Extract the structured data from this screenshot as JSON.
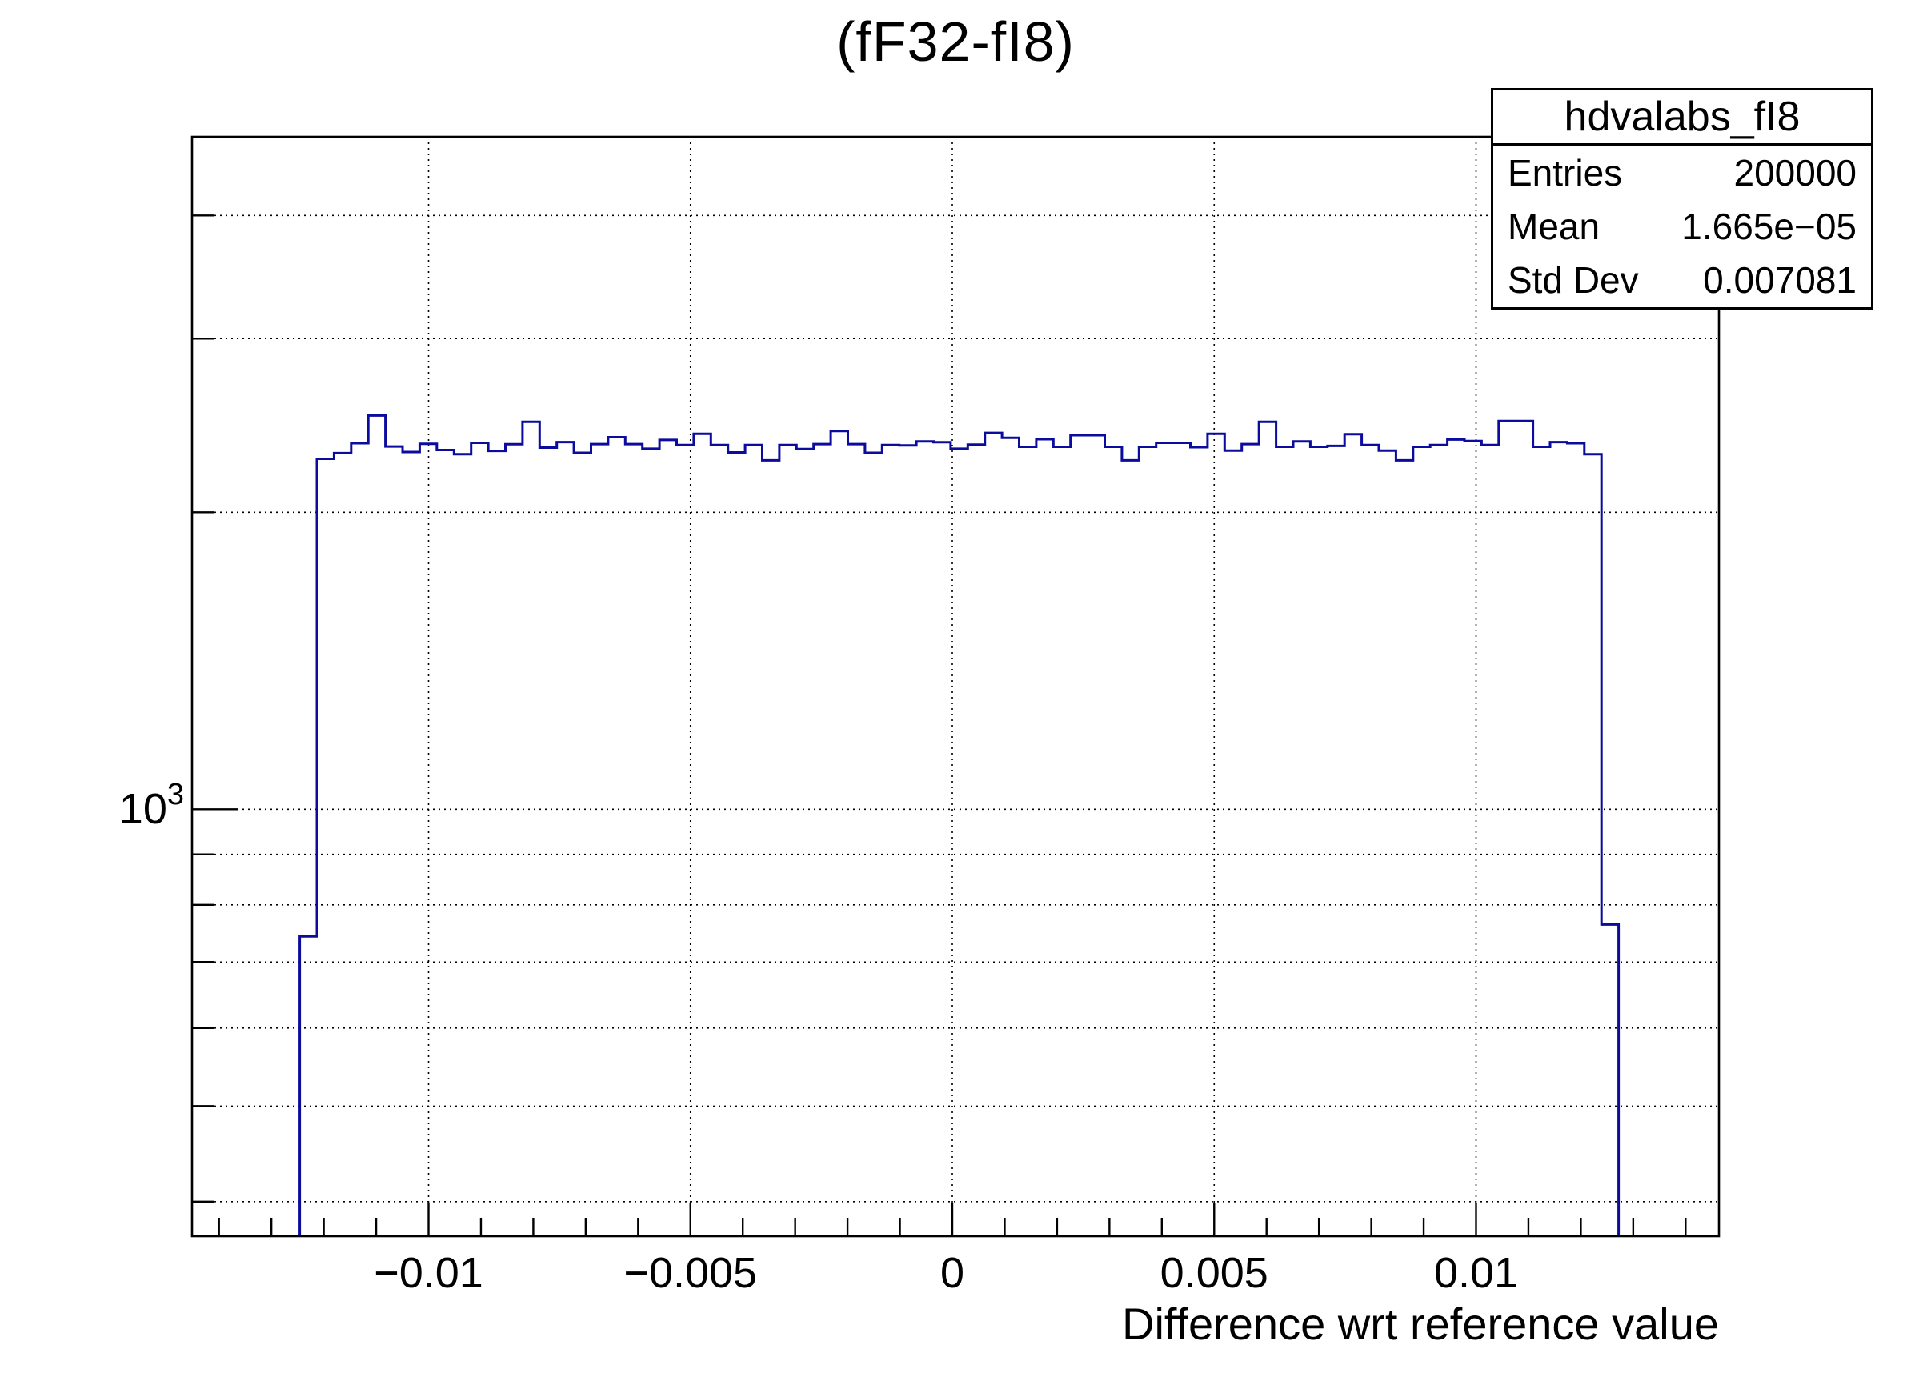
{
  "title": "(fF32-fI8)",
  "stats_box": {
    "title": "hdvalabs_fI8",
    "rows": [
      {
        "label": "Entries",
        "value": "200000"
      },
      {
        "label": "Mean",
        "value": "1.665e−05"
      },
      {
        "label": "Std Dev",
        "value": "0.007081"
      }
    ]
  },
  "colors": {
    "line": "#0b0b9e",
    "frame": "#000000",
    "grid": "#000000",
    "background": "#ffffff"
  },
  "chart_data": {
    "type": "histogram-step",
    "title": "(fF32-fI8)",
    "xlabel": "Difference wrt reference value",
    "ylabel": "",
    "y_scale": "log",
    "grid": true,
    "x_range": [
      -0.014515,
      0.014637
    ],
    "y_range": [
      369,
      4806
    ],
    "x_major_ticks": [
      {
        "value": -0.01,
        "label": "−0.01"
      },
      {
        "value": -0.005,
        "label": "−0.005"
      },
      {
        "value": 0,
        "label": "0"
      },
      {
        "value": 0.005,
        "label": "0.005"
      },
      {
        "value": 0.01,
        "label": "0.01"
      }
    ],
    "x_minor_tick_step": 0.001,
    "x_minor_tick_range": [
      -0.014,
      0.014
    ],
    "y_gridline_values": [
      4000,
      3000,
      2000,
      1000,
      900,
      800,
      700,
      600,
      500,
      400
    ],
    "y_major_tick": {
      "value": 1000,
      "label_base": "10",
      "label_exp": "3"
    },
    "bins": {
      "x_start": -0.012458,
      "bin_width": 0.000327,
      "counts": [
        743,
        2266,
        2296,
        2350,
        2507,
        2332,
        2302,
        2347,
        2313,
        2290,
        2352,
        2308,
        2344,
        2470,
        2326,
        2356,
        2298,
        2345,
        2383,
        2345,
        2320,
        2368,
        2340,
        2402,
        2340,
        2300,
        2340,
        2258,
        2340,
        2318,
        2345,
        2418,
        2345,
        2298,
        2340,
        2338,
        2360,
        2355,
        2320,
        2342,
        2407,
        2380,
        2330,
        2372,
        2330,
        2394,
        2394,
        2330,
        2258,
        2330,
        2352,
        2352,
        2328,
        2402,
        2310,
        2345,
        2470,
        2330,
        2360,
        2330,
        2335,
        2400,
        2340,
        2310,
        2258,
        2330,
        2340,
        2370,
        2362,
        2340,
        2475,
        2475,
        2330,
        2356,
        2350,
        2290,
        764
      ]
    }
  }
}
